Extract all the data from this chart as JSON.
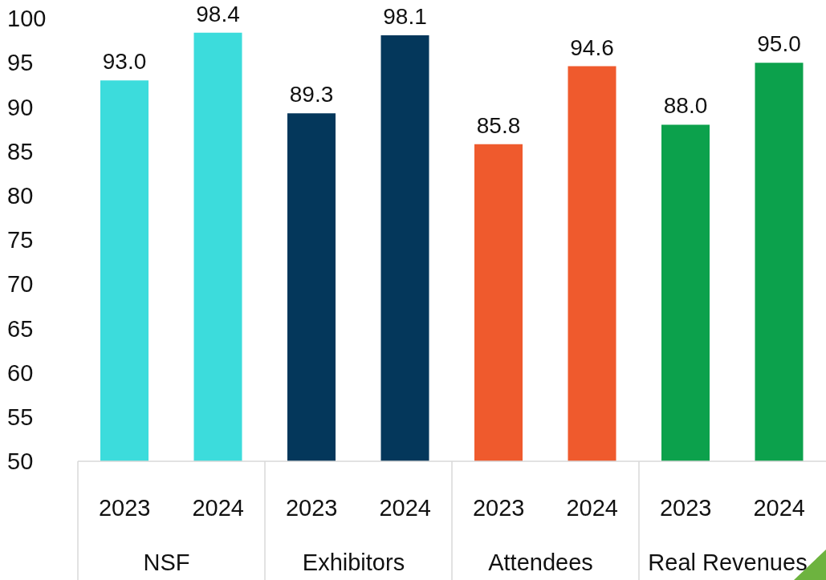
{
  "chart_data": {
    "type": "bar",
    "categories": [
      "2023",
      "2024",
      "2023",
      "2024",
      "2023",
      "2024",
      "2023",
      "2024"
    ],
    "values": [
      93.0,
      98.4,
      89.3,
      98.1,
      85.8,
      94.6,
      88.0,
      95.0
    ],
    "colors": [
      "#3cdcdc",
      "#3cdcdc",
      "#04375b",
      "#04375b",
      "#ef5a2d",
      "#ef5a2d",
      "#0ca14c",
      "#0ca14c"
    ],
    "ylim": [
      50,
      100
    ],
    "yticks": [
      50,
      55,
      60,
      65,
      70,
      75,
      80,
      85,
      90,
      95,
      100
    ],
    "value_labels": [
      "93.0",
      "98.4",
      "89.3",
      "98.1",
      "85.8",
      "94.6",
      "88.0",
      "95.0"
    ],
    "legend": false,
    "annotations": [
      "NSF",
      "Exhibitors",
      "Attendees",
      "Real Revenues"
    ]
  }
}
